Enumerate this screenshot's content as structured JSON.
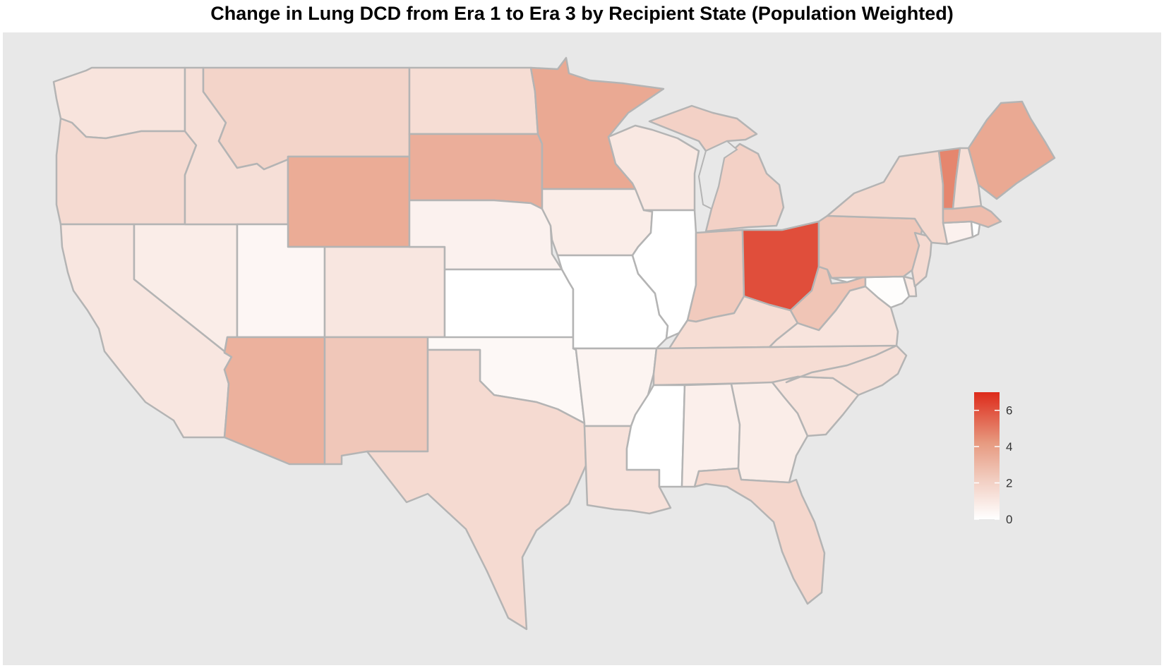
{
  "title": "Change in Lung DCD from Era 1 to Era 3 by Recipient State (Population Weighted)",
  "colors": {
    "panel_bg": "#e8e8e8",
    "border": "#b4b4b4",
    "low": "#ffffff",
    "high": "#dd2a1a"
  },
  "legend": {
    "min": 0,
    "max": 7,
    "breaks": [
      0,
      2,
      4,
      6
    ],
    "labels": [
      "0",
      "2",
      "4",
      "6"
    ]
  },
  "states": [
    {
      "id": "WA",
      "value": 1.2
    },
    {
      "id": "OR",
      "value": 1.6
    },
    {
      "id": "CA",
      "value": 1.1
    },
    {
      "id": "NV",
      "value": 0.8
    },
    {
      "id": "ID",
      "value": 1.4
    },
    {
      "id": "MT",
      "value": 1.9
    },
    {
      "id": "WY",
      "value": 3.5
    },
    {
      "id": "UT",
      "value": 0.4
    },
    {
      "id": "AZ",
      "value": 3.3
    },
    {
      "id": "CO",
      "value": 1.1
    },
    {
      "id": "NM",
      "value": 2.4
    },
    {
      "id": "ND",
      "value": 1.5
    },
    {
      "id": "SD",
      "value": 3.4
    },
    {
      "id": "NE",
      "value": 0.6
    },
    {
      "id": "KS",
      "value": 0.0
    },
    {
      "id": "OK",
      "value": 0.3
    },
    {
      "id": "TX",
      "value": 1.6
    },
    {
      "id": "MN",
      "value": 3.6
    },
    {
      "id": "IA",
      "value": 0.8
    },
    {
      "id": "MO",
      "value": 0.0
    },
    {
      "id": "AR",
      "value": 0.5
    },
    {
      "id": "LA",
      "value": 1.3
    },
    {
      "id": "WI",
      "value": 1.0
    },
    {
      "id": "IL",
      "value": 0.0
    },
    {
      "id": "MI",
      "value": 2.0
    },
    {
      "id": "IN",
      "value": 2.3
    },
    {
      "id": "OH",
      "value": 6.1
    },
    {
      "id": "KY",
      "value": 1.5
    },
    {
      "id": "TN",
      "value": 1.5
    },
    {
      "id": "MS",
      "value": 0.0
    },
    {
      "id": "AL",
      "value": 0.7
    },
    {
      "id": "GA",
      "value": 0.8
    },
    {
      "id": "FL",
      "value": 1.8
    },
    {
      "id": "SC",
      "value": 1.2
    },
    {
      "id": "NC",
      "value": 1.4
    },
    {
      "id": "VA",
      "value": 1.2
    },
    {
      "id": "WV",
      "value": 2.5
    },
    {
      "id": "MD",
      "value": 0.1
    },
    {
      "id": "DE",
      "value": 1.0
    },
    {
      "id": "PA",
      "value": 2.4
    },
    {
      "id": "NJ",
      "value": 1.6
    },
    {
      "id": "NY",
      "value": 1.7
    },
    {
      "id": "CT",
      "value": 0.6
    },
    {
      "id": "RI",
      "value": 0.0
    },
    {
      "id": "MA",
      "value": 2.8
    },
    {
      "id": "VT",
      "value": 4.7
    },
    {
      "id": "NH",
      "value": 1.4
    },
    {
      "id": "ME",
      "value": 3.6
    }
  ]
}
